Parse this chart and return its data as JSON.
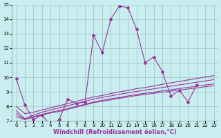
{
  "title": "",
  "xlabel": "Windchill (Refroidissement éolien,°C)",
  "ylabel": "",
  "x_values": [
    0,
    1,
    2,
    3,
    4,
    5,
    6,
    7,
    8,
    9,
    10,
    11,
    12,
    13,
    14,
    15,
    16,
    17,
    18,
    19,
    20,
    21,
    22,
    23
  ],
  "line1": [
    9.9,
    8.1,
    7.1,
    7.4,
    6.7,
    7.1,
    8.5,
    8.2,
    8.3,
    12.9,
    11.7,
    14.0,
    14.9,
    14.8,
    13.3,
    11.0,
    11.4,
    10.4,
    8.7,
    9.1,
    8.3,
    9.5,
    null,
    null
  ],
  "line2": [
    7.3,
    7.1,
    7.25,
    7.4,
    7.55,
    7.65,
    7.8,
    7.95,
    8.1,
    8.25,
    8.35,
    8.45,
    8.55,
    8.65,
    8.75,
    8.82,
    8.9,
    8.97,
    9.05,
    9.12,
    9.2,
    9.27,
    9.35,
    9.42
  ],
  "line3": [
    7.5,
    7.1,
    7.3,
    7.45,
    7.6,
    7.72,
    7.85,
    8.0,
    8.15,
    8.3,
    8.42,
    8.52,
    8.62,
    8.72,
    8.82,
    8.9,
    8.98,
    9.07,
    9.15,
    9.23,
    9.31,
    9.39,
    9.47,
    9.55
  ],
  "line4": [
    7.7,
    7.15,
    7.4,
    7.6,
    7.75,
    7.9,
    8.05,
    8.2,
    8.35,
    8.5,
    8.62,
    8.72,
    8.83,
    8.93,
    9.03,
    9.12,
    9.21,
    9.3,
    9.39,
    9.48,
    9.57,
    9.66,
    9.75,
    9.84
  ],
  "line5": [
    8.0,
    7.5,
    7.6,
    7.75,
    7.9,
    8.05,
    8.2,
    8.35,
    8.5,
    8.65,
    8.75,
    8.88,
    9.0,
    9.1,
    9.22,
    9.3,
    9.4,
    9.52,
    9.62,
    9.72,
    9.82,
    9.92,
    10.02,
    10.12
  ],
  "line_color": "#993399",
  "bg_color": "#c8eef0",
  "grid_color": "#9dbfbf",
  "xlim_min": -0.5,
  "xlim_max": 23.5,
  "ylim_min": 7.0,
  "ylim_max": 15.0,
  "yticks": [
    7,
    8,
    9,
    10,
    11,
    12,
    13,
    14,
    15
  ],
  "xticks": [
    0,
    1,
    2,
    3,
    4,
    5,
    6,
    7,
    8,
    9,
    10,
    11,
    12,
    13,
    14,
    15,
    16,
    17,
    18,
    19,
    20,
    21,
    22,
    23
  ],
  "tick_fontsize": 5.0,
  "xlabel_fontsize": 6.0,
  "marker": "D",
  "marker_size": 2.0,
  "line_width": 0.8
}
